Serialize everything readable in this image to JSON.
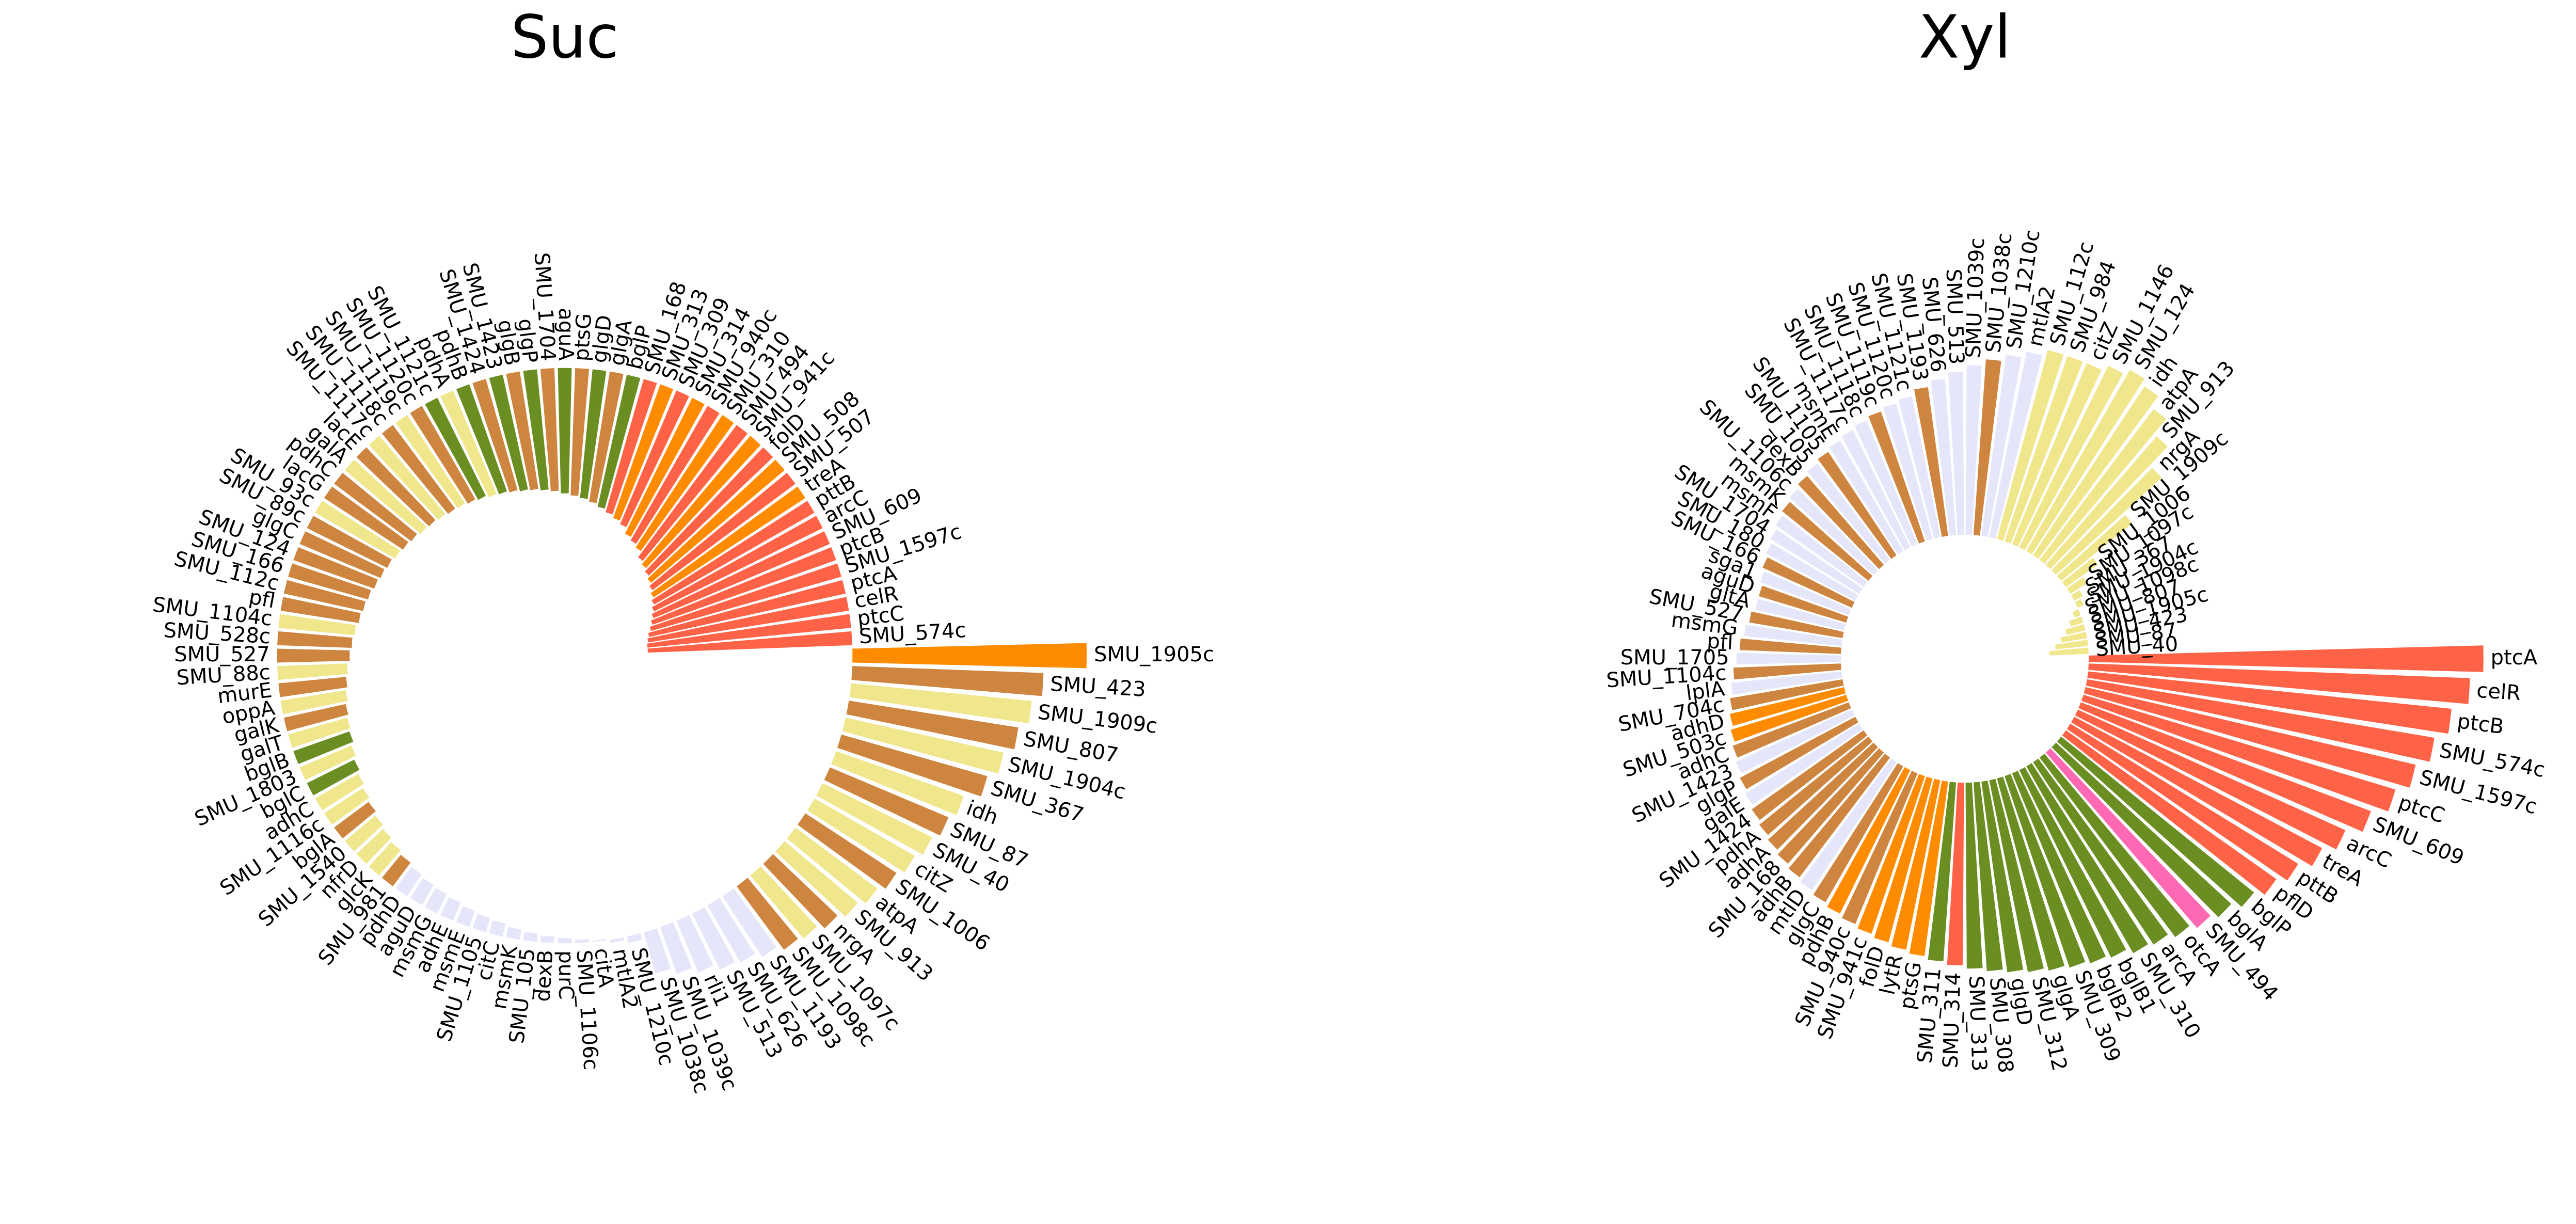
{
  "chart_data": [
    {
      "type": "bar",
      "projection": "polar",
      "title": "Suc",
      "ylim": [
        -4.36,
        3.55
      ],
      "categories": [
        "SMU_1905c",
        "SMU_423",
        "SMU_1909c",
        "SMU_807",
        "SMU_1904c",
        "SMU_367",
        "idh",
        "SMU_87",
        "SMU_40",
        "citZ",
        "SMU_1006",
        "atpA",
        "SMU_913",
        "nrgA",
        "SMU_1097c",
        "SMU_1098c",
        "SMU_1193",
        "SMU_626",
        "SMU_513",
        "rli1",
        "SMU_1039c",
        "SMU_1038c",
        "SMU_1210c",
        "mtlA2",
        "citA",
        "SMU_1106c",
        "purC",
        "dexB",
        "SMU_105",
        "msmK",
        "citC",
        "SMU_1105",
        "msmE",
        "adhE",
        "msmG",
        "aguD",
        "pdhD",
        "SMU_981",
        "glcK",
        "nfrD",
        "SMU_1540",
        "bglA",
        "SMU_1116c",
        "adhC",
        "bglC",
        "SMU_1803",
        "bglB",
        "galT",
        "galK",
        "oppA",
        "murE",
        "SMU_88c",
        "SMU_527",
        "SMU_528c",
        "SMU_1104c",
        "pfl",
        "SMU_112c",
        "SMU_166",
        "SMU_124",
        "glgC",
        "SMU_89c",
        "SMU_93c",
        "lacG",
        "pdhC",
        "galA",
        "lacE",
        "SMU_1117c",
        "SMU_1118c",
        "SMU_1119c",
        "SMU_1120c",
        "SMU_1121c",
        "pdhA",
        "pdhB",
        "SMU_1424",
        "SMU_1423",
        "glgB",
        "glgP",
        "SMU_1704",
        "aguA",
        "ptsG",
        "glgD",
        "glgA",
        "bglP",
        "SMU_168",
        "SMU_313",
        "SMU_309",
        "SMU_314",
        "SMU_940c",
        "SMU_310",
        "SMU_494",
        "SMU_941c",
        "folD",
        "SMU_508",
        "SMU_507",
        "treA",
        "pttB",
        "arcC",
        "SMU_609",
        "ptcB",
        "SMU_1597c",
        "ptcA",
        "celR",
        "ptcC",
        "SMU_574c"
      ],
      "values": [
        3.55,
        2.9,
        2.75,
        2.6,
        2.45,
        2.3,
        2.05,
        1.95,
        1.85,
        1.75,
        1.65,
        1.55,
        1.45,
        1.35,
        1.25,
        1.2,
        1.1,
        1.0,
        0.95,
        0.85,
        0.75,
        0.65,
        0.1,
        0.05,
        -0.02,
        -0.05,
        -0.08,
        -0.1,
        -0.13,
        -0.16,
        -0.2,
        -0.23,
        -0.26,
        -0.3,
        -0.33,
        -0.36,
        -0.4,
        -0.45,
        -0.5,
        -0.55,
        -0.6,
        -0.65,
        -0.7,
        -0.75,
        -0.8,
        -0.85,
        -0.9,
        -0.93,
        -0.96,
        -1.0,
        -1.03,
        -1.06,
        -1.1,
        -1.13,
        -1.16,
        -1.2,
        -1.23,
        -1.26,
        -1.3,
        -1.33,
        -1.36,
        -1.4,
        -1.43,
        -1.46,
        -1.5,
        -1.52,
        -1.55,
        -1.58,
        -1.6,
        -1.63,
        -1.66,
        -1.7,
        -1.72,
        -1.75,
        -1.78,
        -1.8,
        -1.83,
        -1.86,
        -1.9,
        -1.93,
        -1.96,
        -2.0,
        -2.05,
        -2.1,
        -2.15,
        -2.2,
        -2.3,
        -2.35,
        -2.4,
        -2.5,
        -2.55,
        -2.6,
        -2.65,
        -2.7,
        -2.75,
        -2.8,
        -2.85,
        -2.9,
        -2.95,
        -3.0,
        -3.05,
        -3.08,
        -3.1,
        -3.1
      ],
      "colors": [
        "#ff8c00",
        "#cd853f",
        "#f0e68c",
        "#cd853f",
        "#f0e68c",
        "#cd853f",
        "#f0e68c",
        "#cd853f",
        "#f0e68c",
        "#f0e68c",
        "#cd853f",
        "#f0e68c",
        "#f0e68c",
        "#cd853f",
        "#f0e68c",
        "#cd853f",
        "#e6e6fa",
        "#e6e6fa",
        "#e6e6fa",
        "#e6e6fa",
        "#e6e6fa",
        "#e6e6fa",
        "#e6e6fa",
        "#e6e6fa",
        "#e6e6fa",
        "#e6e6fa",
        "#e6e6fa",
        "#e6e6fa",
        "#e6e6fa",
        "#e6e6fa",
        "#e6e6fa",
        "#e6e6fa",
        "#e6e6fa",
        "#e6e6fa",
        "#e6e6fa",
        "#e6e6fa",
        "#e6e6fa",
        "#cd853f",
        "#f0e68c",
        "#f0e68c",
        "#f0e68c",
        "#cd853f",
        "#f0e68c",
        "#f0e68c",
        "#6b8e23",
        "#f0e68c",
        "#6b8e23",
        "#f0e68c",
        "#cd853f",
        "#f0e68c",
        "#cd853f",
        "#f0e68c",
        "#cd853f",
        "#cd853f",
        "#f0e68c",
        "#cd853f",
        "#cd853f",
        "#cd853f",
        "#cd853f",
        "#cd853f",
        "#cd853f",
        "#f0e68c",
        "#cd853f",
        "#cd853f",
        "#f0e68c",
        "#cd853f",
        "#f0e68c",
        "#cd853f",
        "#f0e68c",
        "#cd853f",
        "#6b8e23",
        "#f0e68c",
        "#6b8e23",
        "#cd853f",
        "#6b8e23",
        "#cd853f",
        "#6b8e23",
        "#cd853f",
        "#6b8e23",
        "#cd853f",
        "#6b8e23",
        "#cd853f",
        "#6b8e23",
        "#ff6347",
        "#ff8c00",
        "#ff6347",
        "#ff8c00",
        "#ff6347",
        "#ff8c00",
        "#ff6347",
        "#ff8c00",
        "#ff6347",
        "#ff8c00",
        "#ff6347",
        "#ff8c00",
        "#ff6347",
        "#ff6347",
        "#ff6347",
        "#ff6347",
        "#ff6347",
        "#ff6347",
        "#ff6347",
        "#ff6347",
        "#ff6347"
      ]
    },
    {
      "type": "bar",
      "projection": "polar",
      "title": "Xyl",
      "ylim": [
        -1.9,
        6.1
      ],
      "categories": [
        "ptcA",
        "celR",
        "ptcB",
        "SMU_574c",
        "SMU_1597c",
        "ptcC",
        "SMU_609",
        "arcC",
        "treA",
        "pttB",
        "pflD",
        "bglP",
        "bglA",
        "SMU_494",
        "otcA",
        "arcA",
        "SMU_310",
        "bglB1",
        "bglB2",
        "SMU_309",
        "glgA",
        "SMU_312",
        "glgD",
        "SMU_308",
        "SMU_313",
        "SMU_314",
        "SMU_311",
        "ptsG",
        "lytR",
        "folD",
        "SMU_941c",
        "SMU_940c",
        "pdhB",
        "glgC",
        "mtlD",
        "adhB",
        "SMU_168",
        "adhA",
        "pdhA",
        "SMU_1424",
        "galE",
        "glgP",
        "SMU_1423",
        "adhC",
        "SMU_503c",
        "adhD",
        "SMU_704c",
        "lplA",
        "SMU_1104c",
        "SMU_1705",
        "pfl",
        "msmG",
        "SMU_527",
        "gltA",
        "aguD",
        "sga1",
        "SMU_166",
        "SMU_180",
        "SMU_1704",
        "msmF",
        "msmK",
        "SMU_1106c",
        "dexB",
        "SMU_105",
        "SMU_1105",
        "msmE",
        "SMU_1117c",
        "SMU_1118c",
        "SMU_1119c",
        "SMU_1120c",
        "SMU_1121c",
        "SMU_1193",
        "SMU_626",
        "SMU_513",
        "SMU_1039c",
        "SMU_1038c",
        "SMU_1210c",
        "mtlA2",
        "SMU_112c",
        "SMU_984",
        "citZ",
        "SMU_1146",
        "SMU_124",
        "idh",
        "atpA",
        "SMU_913",
        "nrgA",
        "SMU_1909c",
        "SMU_1006",
        "SMU_1097c",
        "SMU_367",
        "SMU_1904c",
        "SMU_1098c",
        "SMU_807",
        "SMU_1905c",
        "SMU_423",
        "SMU_87",
        "SMU_40"
      ],
      "values": [
        6.05,
        5.85,
        5.6,
        5.4,
        5.2,
        5.0,
        4.75,
        4.5,
        4.3,
        4.1,
        3.95,
        3.8,
        3.65,
        3.55,
        3.45,
        3.35,
        3.3,
        3.2,
        3.15,
        3.1,
        3.05,
        3.0,
        2.95,
        2.9,
        2.85,
        2.8,
        2.75,
        2.7,
        2.65,
        2.6,
        2.55,
        2.5,
        2.45,
        2.4,
        2.35,
        2.3,
        2.25,
        2.2,
        2.15,
        2.1,
        2.05,
        2.0,
        1.95,
        1.9,
        1.85,
        1.8,
        1.75,
        1.7,
        1.65,
        1.6,
        1.55,
        1.5,
        1.45,
        1.4,
        1.4,
        1.45,
        1.5,
        1.55,
        1.6,
        1.65,
        1.7,
        1.75,
        1.8,
        1.85,
        1.9,
        1.95,
        2.0,
        2.05,
        2.1,
        2.15,
        2.2,
        2.3,
        2.4,
        2.5,
        2.6,
        2.7,
        2.8,
        2.9,
        3.0,
        3.0,
        3.0,
        3.1,
        3.2,
        3.1,
        2.9,
        2.6,
        2.2,
        1.4,
        0.6,
        0.3,
        0.15,
        0.1,
        -0.1,
        -0.2,
        -0.3,
        -0.4,
        -0.5,
        -0.6
      ],
      "colors": [
        "#ff6347",
        "#ff6347",
        "#ff6347",
        "#ff6347",
        "#ff6347",
        "#ff6347",
        "#ff6347",
        "#ff6347",
        "#ff6347",
        "#ff6347",
        "#ff6347",
        "#6b8e23",
        "#6b8e23",
        "#ff69b4",
        "#6b8e23",
        "#6b8e23",
        "#6b8e23",
        "#6b8e23",
        "#6b8e23",
        "#6b8e23",
        "#6b8e23",
        "#6b8e23",
        "#6b8e23",
        "#6b8e23",
        "#6b8e23",
        "#ff6347",
        "#6b8e23",
        "#ff8c00",
        "#ff8c00",
        "#ff8c00",
        "#ff8c00",
        "#cd853f",
        "#ff8c00",
        "#cd853f",
        "#e6e6fa",
        "#cd853f",
        "#cd853f",
        "#cd853f",
        "#cd853f",
        "#cd853f",
        "#e6e6fa",
        "#cd853f",
        "#e6e6fa",
        "#cd853f",
        "#ff8c00",
        "#ff8c00",
        "#cd853f",
        "#e6e6fa",
        "#cd853f",
        "#e6e6fa",
        "#cd853f",
        "#e6e6fa",
        "#cd853f",
        "#e6e6fa",
        "#cd853f",
        "#e6e6fa",
        "#cd853f",
        "#e6e6fa",
        "#e6e6fa",
        "#e6e6fa",
        "#cd853f",
        "#e6e6fa",
        "#cd853f",
        "#e6e6fa",
        "#cd853f",
        "#e6e6fa",
        "#e6e6fa",
        "#e6e6fa",
        "#cd853f",
        "#e6e6fa",
        "#e6e6fa",
        "#cd853f",
        "#e6e6fa",
        "#e6e6fa",
        "#e6e6fa",
        "#cd853f",
        "#e6e6fa",
        "#e6e6fa",
        "#f0e68c",
        "#f0e68c",
        "#f0e68c",
        "#f0e68c",
        "#f0e68c",
        "#f0e68c",
        "#f0e68c",
        "#f0e68c",
        "#f0e68c",
        "#f0e68c",
        "#f0e68c",
        "#f0e68c",
        "#f0e68c",
        "#f0e68c",
        "#f0e68c",
        "#f0e68c",
        "#f0e68c",
        "#f0e68c",
        "#f0e68c",
        "#f0e68c"
      ]
    }
  ]
}
